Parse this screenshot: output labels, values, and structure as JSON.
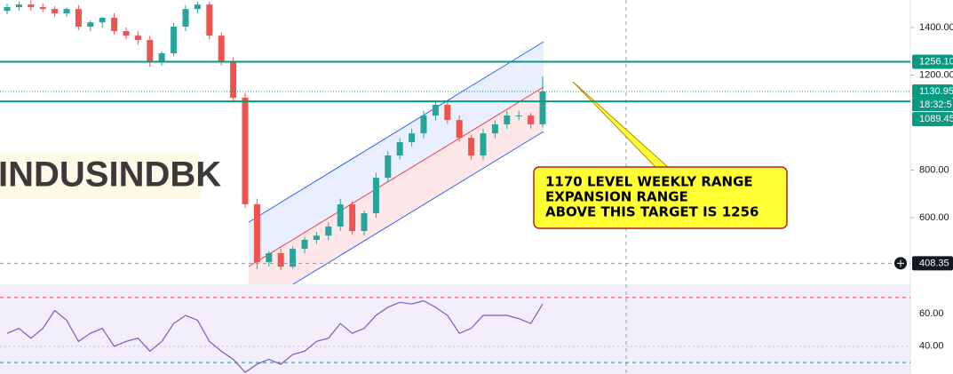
{
  "chart_data": {
    "type": "candlestick",
    "title": "INDUSINDBK",
    "annotation": [
      "1170 LEVEL WEEKLY RANGE",
      "EXPANSION RANGE",
      "ABOVE THIS TARGET IS 1256"
    ],
    "up_color": "#26a69a",
    "down_color": "#ef5350",
    "ylim": [
      320,
      1516
    ],
    "yticks": [
      {
        "value": 1400,
        "label": "1400.00"
      },
      {
        "value": 1200,
        "label": "1200.00"
      },
      {
        "value": 800,
        "label": "800.00"
      },
      {
        "value": 600,
        "label": "600.00"
      }
    ],
    "price_lines": [
      {
        "value": 1256.1,
        "label": "1256.10",
        "color": "#089981",
        "style": "solid"
      },
      {
        "value": 1130.95,
        "label": "1130.95",
        "color": "#089981",
        "style": "dotted"
      },
      {
        "value": 1089.45,
        "label": "1089.45",
        "color": "#089981",
        "style": "solid"
      },
      {
        "value": 408.35,
        "label": "408.35",
        "color": "#131722",
        "style": "dashed"
      }
    ],
    "countdown": "18:32:5",
    "open": [
      1470,
      1486,
      1497,
      1486,
      1478,
      1460,
      1478,
      1404,
      1422,
      1441,
      1385,
      1366,
      1348,
      1255,
      1292,
      1404,
      1478,
      1497,
      1366,
      1255,
      1105,
      657,
      413,
      451,
      394,
      469,
      507,
      525,
      563,
      656,
      544,
      619,
      768,
      862,
      918,
      955,
      1030,
      1075,
      1011,
      936,
      862,
      955,
      993,
      1030,
      1030,
      993
    ],
    "high": [
      1500,
      1510,
      1515,
      1500,
      1490,
      1485,
      1495,
      1430,
      1445,
      1460,
      1400,
      1385,
      1365,
      1300,
      1420,
      1495,
      1510,
      1510,
      1380,
      1275,
      1125,
      680,
      460,
      470,
      480,
      520,
      540,
      580,
      680,
      670,
      630,
      790,
      880,
      935,
      975,
      1050,
      1095,
      1090,
      1030,
      950,
      975,
      1010,
      1050,
      1050,
      1040,
      1195
    ],
    "low": [
      1455,
      1470,
      1470,
      1465,
      1445,
      1445,
      1390,
      1385,
      1400,
      1370,
      1350,
      1330,
      1235,
      1240,
      1280,
      1385,
      1460,
      1350,
      1240,
      1090,
      640,
      385,
      395,
      380,
      385,
      450,
      490,
      505,
      545,
      530,
      525,
      600,
      750,
      845,
      900,
      935,
      1010,
      995,
      920,
      845,
      845,
      935,
      975,
      1010,
      975,
      980
    ],
    "close": [
      1486,
      1497,
      1486,
      1478,
      1460,
      1478,
      1404,
      1422,
      1441,
      1385,
      1366,
      1348,
      1255,
      1292,
      1404,
      1478,
      1497,
      1366,
      1255,
      1105,
      657,
      413,
      451,
      394,
      469,
      507,
      525,
      563,
      656,
      544,
      619,
      768,
      862,
      918,
      955,
      1030,
      1075,
      1011,
      936,
      862,
      955,
      993,
      1030,
      1030,
      993,
      1130.95
    ],
    "rsi": {
      "color": "#7e57c2",
      "ylim": [
        23,
        77
      ],
      "yticks": [
        {
          "value": 60,
          "label": "60.00"
        },
        {
          "value": 40,
          "label": "40.00"
        }
      ],
      "bands": [
        70,
        30
      ],
      "values": [
        48,
        51,
        45,
        51,
        62,
        56,
        43,
        48,
        51,
        40,
        43,
        45,
        37,
        43,
        54,
        59,
        56,
        43,
        37,
        32,
        24,
        29,
        32,
        29,
        35,
        37,
        43,
        45,
        54,
        48,
        51,
        59,
        64,
        67,
        66,
        68,
        64,
        59,
        48,
        51,
        59,
        59,
        59,
        57,
        54,
        66
      ]
    }
  }
}
